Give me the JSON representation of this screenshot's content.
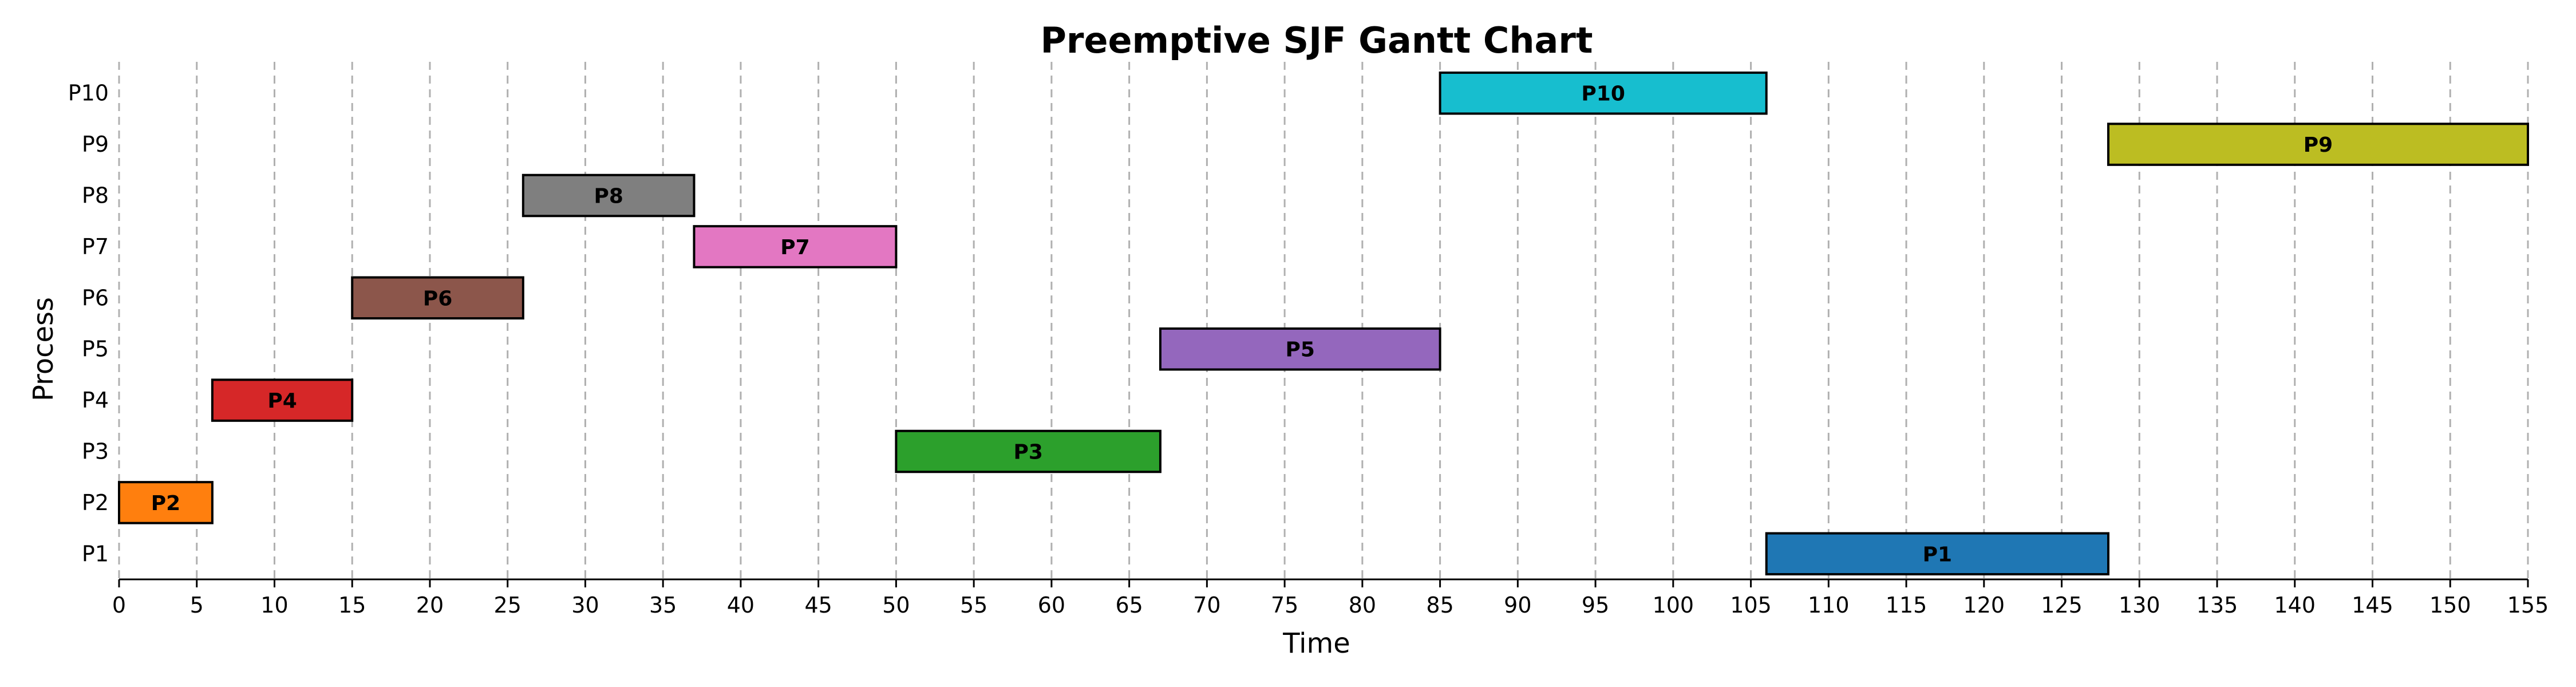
{
  "chart_data": {
    "type": "gantt",
    "title": "Preemptive SJF Gantt Chart",
    "xlabel": "Time",
    "ylabel": "Process",
    "xlim": [
      0,
      155
    ],
    "x_ticks": [
      0,
      5,
      10,
      15,
      20,
      25,
      30,
      35,
      40,
      45,
      50,
      55,
      60,
      65,
      70,
      75,
      80,
      85,
      90,
      95,
      100,
      105,
      110,
      115,
      120,
      125,
      130,
      135,
      140,
      145,
      150,
      155
    ],
    "categories": [
      "P1",
      "P2",
      "P3",
      "P4",
      "P5",
      "P6",
      "P7",
      "P8",
      "P9",
      "P10"
    ],
    "grid": "vertical dashed",
    "tasks": [
      {
        "process": "P2",
        "label": "P2",
        "start": 0,
        "end": 6,
        "color": "#ff7f0e"
      },
      {
        "process": "P4",
        "label": "P4",
        "start": 6,
        "end": 15,
        "color": "#d62728"
      },
      {
        "process": "P6",
        "label": "P6",
        "start": 15,
        "end": 26,
        "color": "#8c564b"
      },
      {
        "process": "P8",
        "label": "P8",
        "start": 26,
        "end": 37,
        "color": "#7f7f7f"
      },
      {
        "process": "P7",
        "label": "P7",
        "start": 37,
        "end": 50,
        "color": "#e377c2"
      },
      {
        "process": "P3",
        "label": "P3",
        "start": 50,
        "end": 67,
        "color": "#2ca02c"
      },
      {
        "process": "P5",
        "label": "P5",
        "start": 67,
        "end": 85,
        "color": "#9467bd"
      },
      {
        "process": "P10",
        "label": "P10",
        "start": 85,
        "end": 106,
        "color": "#17becf"
      },
      {
        "process": "P1",
        "label": "P1",
        "start": 106,
        "end": 128,
        "color": "#1f77b4"
      },
      {
        "process": "P9",
        "label": "P9",
        "start": 128,
        "end": 155,
        "color": "#bcbd22"
      }
    ]
  }
}
